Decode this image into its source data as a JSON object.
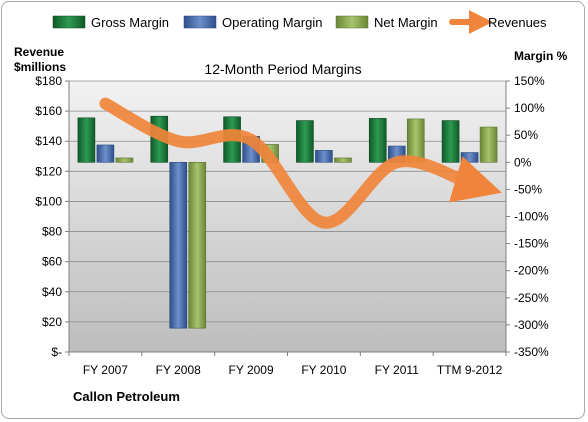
{
  "company": "Callon Petroleum",
  "chart_data": {
    "type": "bar",
    "title": "12-Month Period Margins",
    "categories": [
      "FY 2007",
      "FY 2008",
      "FY 2009",
      "FY 2010",
      "FY 2011",
      "TTM 9-2012"
    ],
    "left_axis": {
      "label_line1": "Revenue",
      "label_line2": "$millions",
      "range": [
        0,
        180
      ],
      "ticks": [
        0,
        20,
        40,
        60,
        80,
        100,
        120,
        140,
        160,
        180
      ],
      "tick_labels": [
        "$-",
        "$20",
        "$40",
        "$60",
        "$80",
        "$100",
        "$120",
        "$140",
        "$160",
        "$180"
      ]
    },
    "right_axis": {
      "label": "Margin %",
      "range": [
        -350,
        150
      ],
      "ticks": [
        -350,
        -300,
        -250,
        -200,
        -150,
        -100,
        -50,
        0,
        50,
        100,
        150
      ],
      "tick_labels": [
        "-350%",
        "-300%",
        "-250%",
        "-200%",
        "-150%",
        "-100%",
        "-50%",
        "0%",
        "50%",
        "100%",
        "150%"
      ]
    },
    "series": [
      {
        "name": "Gross Margin",
        "axis": "right",
        "color": "#1f7a3d",
        "values": [
          82,
          85,
          84,
          77,
          81,
          77
        ]
      },
      {
        "name": "Operating Margin",
        "axis": "right",
        "color": "#4a6fae",
        "values": [
          32,
          -306,
          48,
          22,
          30,
          18
        ]
      },
      {
        "name": "Net Margin",
        "axis": "right",
        "color": "#8aa84e",
        "values": [
          8,
          -306,
          33,
          8,
          80,
          65
        ]
      },
      {
        "name": "Revenues",
        "axis": "left",
        "color": "#f0843a",
        "type": "line",
        "values": [
          165,
          140,
          141,
          86,
          126,
          112
        ]
      }
    ],
    "grid": true,
    "legend": "top"
  }
}
